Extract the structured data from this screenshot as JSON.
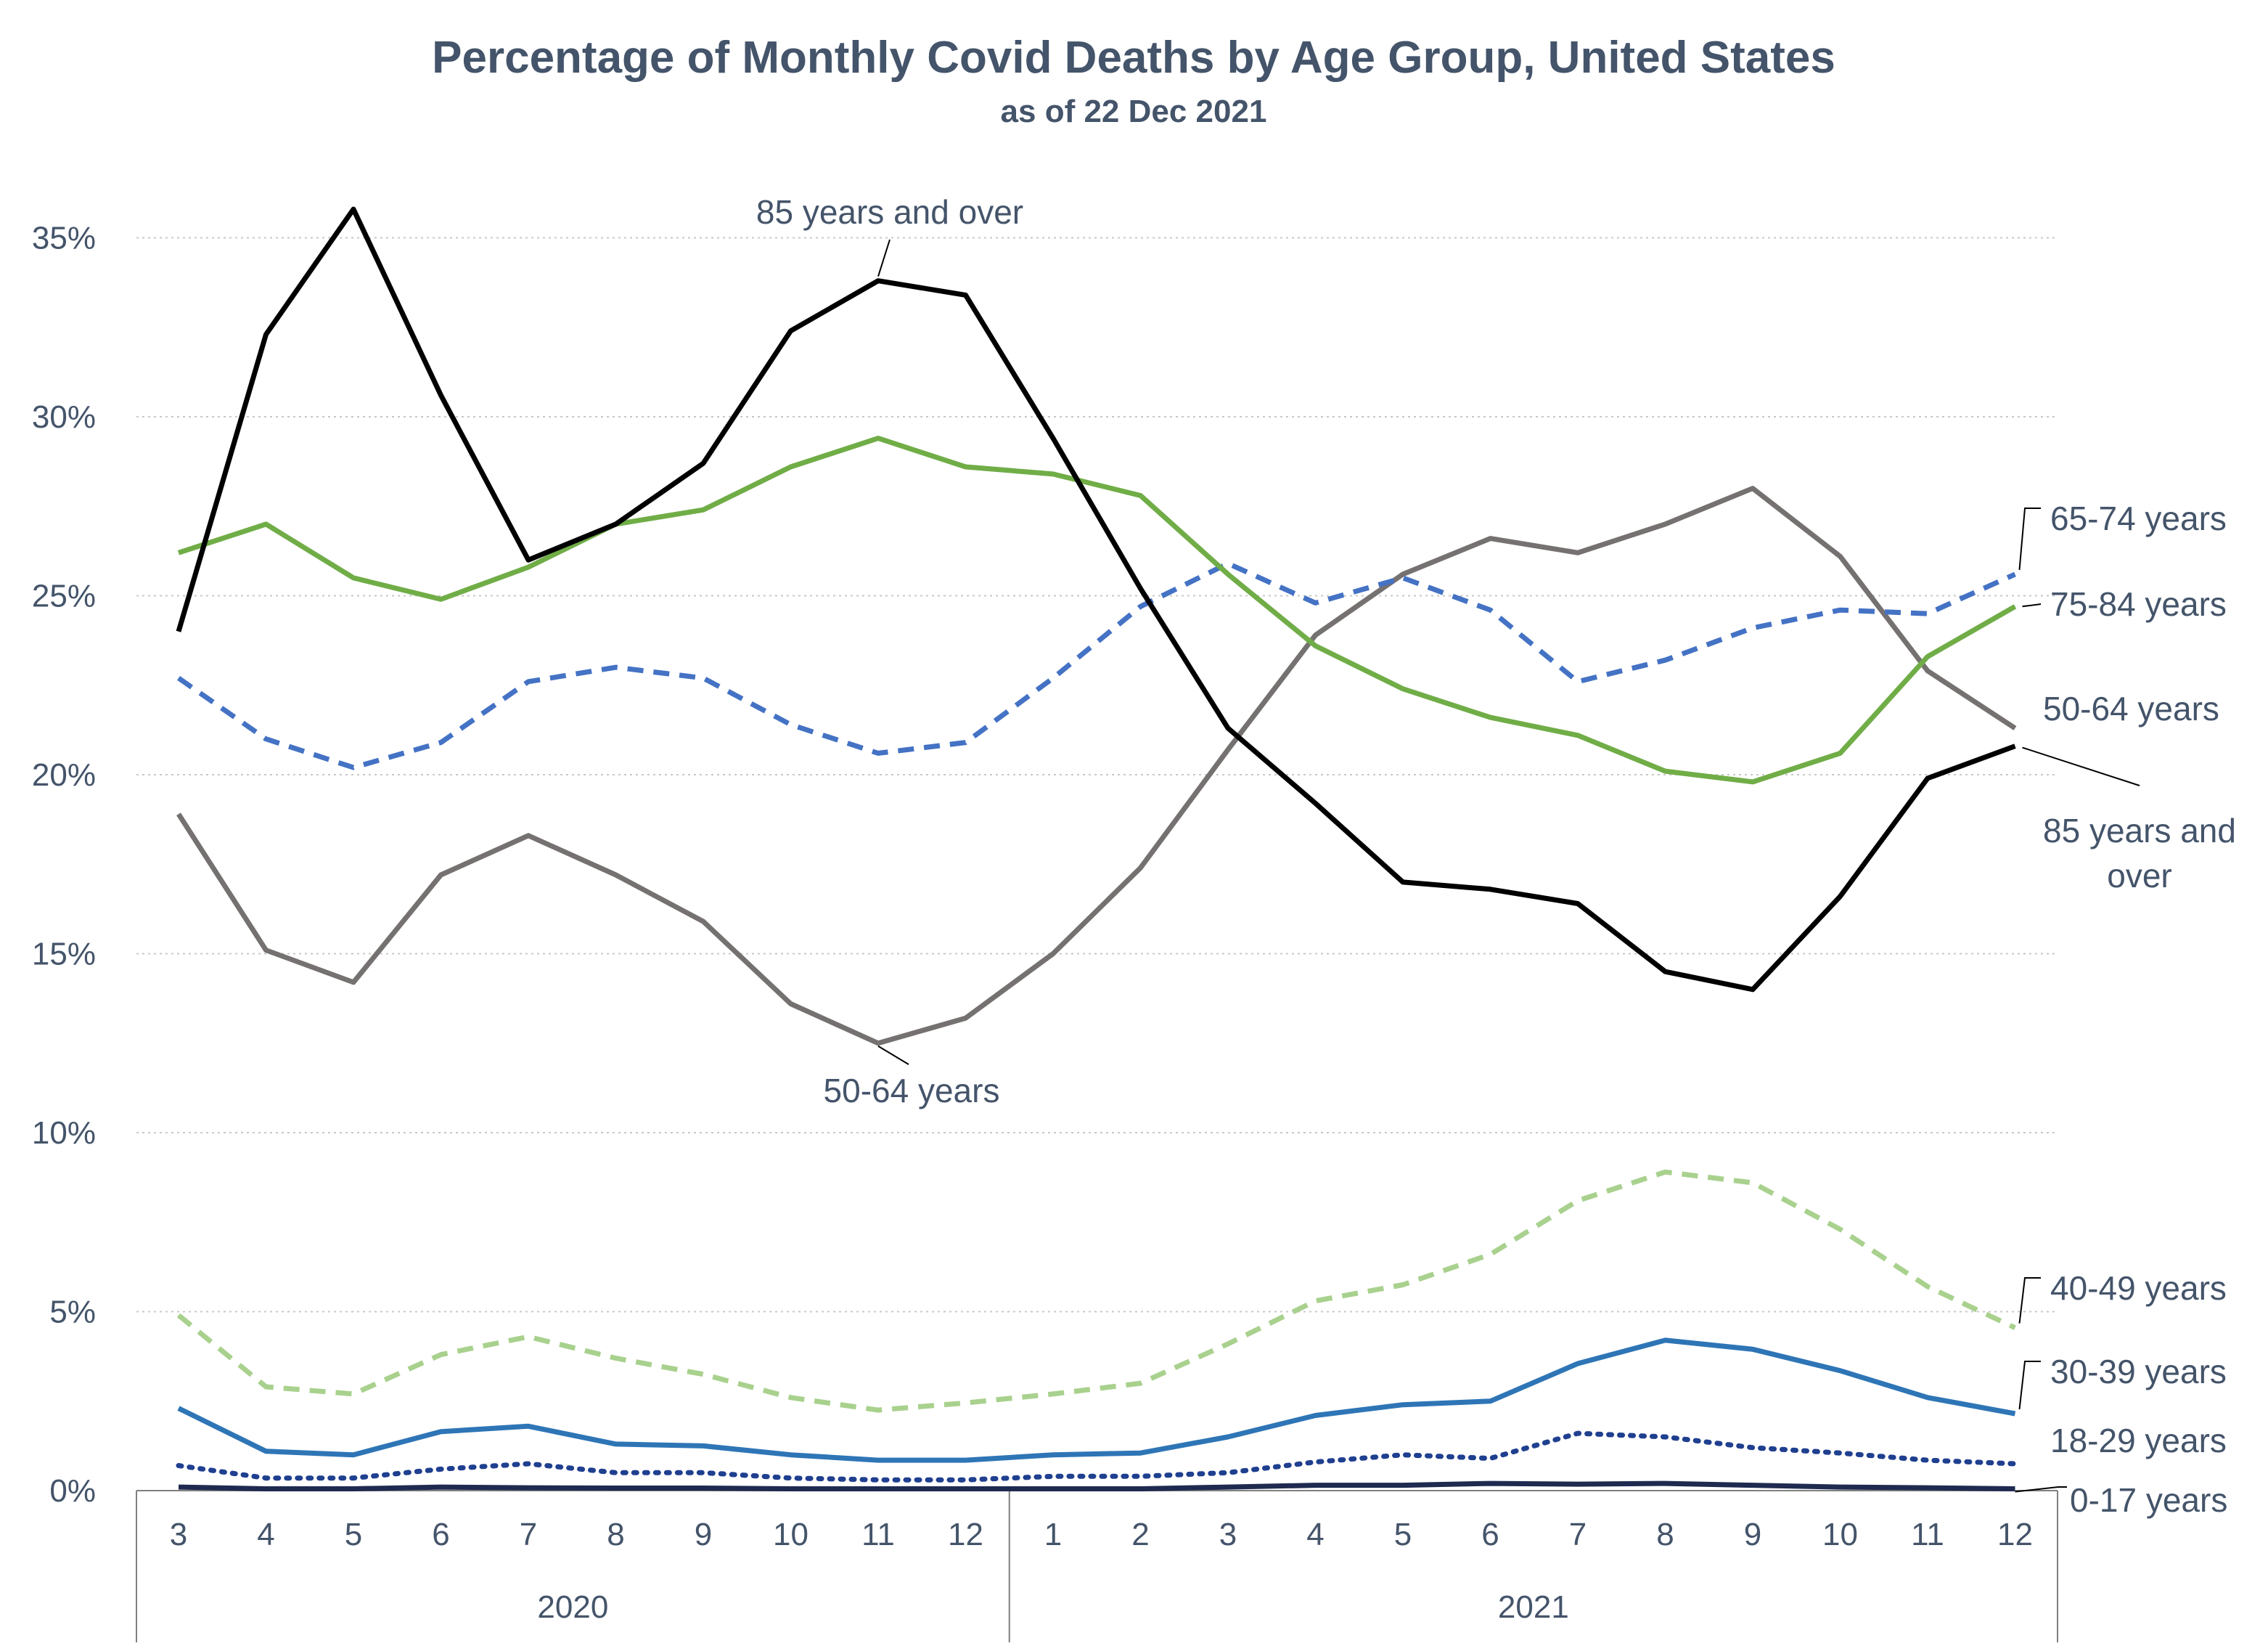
{
  "chart_data": {
    "type": "line",
    "title": "Percentage of Monthly Covid Deaths by Age Group, United States",
    "subtitle": "as of 22 Dec 2021",
    "categories": [
      "3",
      "4",
      "5",
      "6",
      "7",
      "8",
      "9",
      "10",
      "11",
      "12",
      "1",
      "2",
      "3",
      "4",
      "5",
      "6",
      "7",
      "8",
      "9",
      "10",
      "11",
      "12"
    ],
    "year_groups": [
      {
        "label": "2020",
        "months": 10
      },
      {
        "label": "2021",
        "months": 12
      }
    ],
    "ylim": [
      0,
      36
    ],
    "yticks": [
      0,
      5,
      10,
      15,
      20,
      25,
      30,
      35
    ],
    "ytick_labels": [
      "0%",
      "5%",
      "10%",
      "15%",
      "20%",
      "25%",
      "30%",
      "35%"
    ],
    "grid": true,
    "series": [
      {
        "name": "0-17 years",
        "color": "#1f2a50",
        "style": "solid",
        "values": [
          0.1,
          0.05,
          0.05,
          0.1,
          0.08,
          0.07,
          0.07,
          0.05,
          0.05,
          0.05,
          0.05,
          0.05,
          0.1,
          0.15,
          0.15,
          0.2,
          0.18,
          0.2,
          0.15,
          0.1,
          0.08,
          0.05
        ]
      },
      {
        "name": "18-29 years",
        "color": "#1f3f8f",
        "style": "dotted",
        "values": [
          0.7,
          0.35,
          0.35,
          0.6,
          0.75,
          0.5,
          0.5,
          0.35,
          0.3,
          0.3,
          0.4,
          0.4,
          0.5,
          0.8,
          1.0,
          0.9,
          1.6,
          1.5,
          1.2,
          1.05,
          0.85,
          0.75
        ]
      },
      {
        "name": "30-39 years",
        "color": "#2e75b6",
        "style": "solid",
        "values": [
          2.3,
          1.1,
          1.0,
          1.65,
          1.8,
          1.3,
          1.25,
          1.0,
          0.85,
          0.85,
          1.0,
          1.05,
          1.5,
          2.1,
          2.4,
          2.5,
          3.55,
          4.2,
          3.95,
          3.35,
          2.6,
          2.15
        ]
      },
      {
        "name": "40-49 years",
        "color": "#a9d18e",
        "style": "dashed",
        "values": [
          4.9,
          2.9,
          2.7,
          3.8,
          4.3,
          3.7,
          3.25,
          2.6,
          2.25,
          2.45,
          2.7,
          3.0,
          4.1,
          5.3,
          5.75,
          6.6,
          8.1,
          8.9,
          8.6,
          7.3,
          5.7,
          4.55
        ]
      },
      {
        "name": "50-64 years",
        "color": "#767171",
        "style": "solid",
        "values": [
          18.9,
          15.1,
          14.2,
          17.2,
          18.3,
          17.2,
          15.9,
          13.6,
          12.5,
          13.2,
          15.0,
          17.4,
          20.7,
          23.9,
          25.6,
          26.6,
          26.2,
          27.0,
          28.0,
          26.1,
          22.9,
          21.3
        ]
      },
      {
        "name": "65-74 years",
        "color": "#4472c4",
        "style": "dashed",
        "values": [
          22.7,
          21.0,
          20.2,
          20.9,
          22.6,
          23.0,
          22.7,
          21.4,
          20.6,
          20.9,
          22.7,
          24.7,
          25.9,
          24.8,
          25.5,
          24.6,
          22.6,
          23.2,
          24.1,
          24.6,
          24.5,
          25.6
        ]
      },
      {
        "name": "75-84 years",
        "color": "#70ad47",
        "style": "solid",
        "values": [
          26.2,
          27.0,
          25.5,
          24.9,
          25.8,
          27.0,
          27.4,
          28.6,
          29.4,
          28.6,
          28.4,
          27.8,
          25.6,
          23.6,
          22.4,
          21.6,
          21.1,
          20.1,
          19.8,
          20.6,
          23.3,
          24.7
        ]
      },
      {
        "name": "85 years and over",
        "color": "#000000",
        "style": "solid",
        "values": [
          24.0,
          32.3,
          35.8,
          30.6,
          26.0,
          27.0,
          28.7,
          32.4,
          33.8,
          33.4,
          29.4,
          25.2,
          21.3,
          19.2,
          17.0,
          16.8,
          16.4,
          14.5,
          14.0,
          16.6,
          19.9,
          20.8
        ]
      }
    ],
    "annotations": {
      "top": "85 years and over",
      "bottom": "50-64 years",
      "right_85_line1": "85 years and",
      "right_85_line2": "over"
    }
  }
}
